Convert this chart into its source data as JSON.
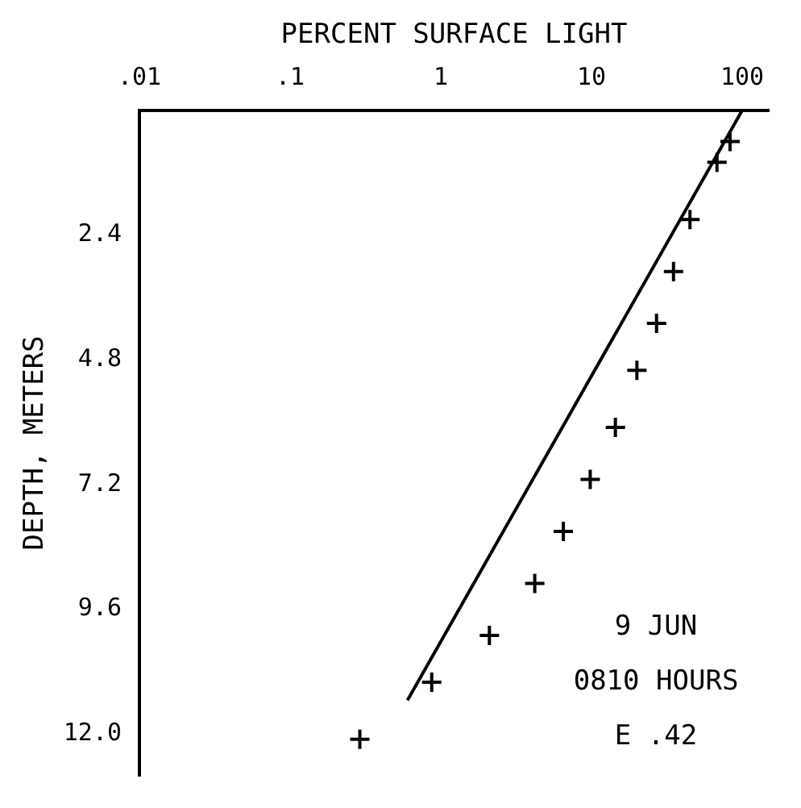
{
  "chart_data": {
    "type": "scatter",
    "xlabel": "PERCENT SURFACE LIGHT",
    "ylabel": "DEPTH, METERS",
    "log": "x",
    "xlim": [
      0.01,
      150
    ],
    "xticks": [
      {
        "value": 0.01,
        "label": ".01"
      },
      {
        "value": 0.1,
        "label": ".1"
      },
      1,
      10,
      100
    ],
    "ylim": [
      12.8,
      0
    ],
    "yticks": [
      2.4,
      4.8,
      7.2,
      9.6,
      {
        "value": 12,
        "label": "12.0"
      }
    ],
    "grid": false,
    "legend": false,
    "marker": "cross",
    "series": [
      {
        "type": "scatter",
        "color": "#000000",
        "x": [
          83,
          68,
          45,
          35,
          27,
          20,
          14.4,
          9.8,
          6.5,
          4.2,
          2.1,
          0.87,
          0.29
        ],
        "values": [
          0.6,
          1.0,
          2.1,
          3.1,
          4.1,
          5.0,
          6.1,
          7.1,
          8.1,
          9.1,
          10.1,
          11.0,
          12.1
        ]
      },
      {
        "type": "line",
        "color": "#000000",
        "marker": "none",
        "x": [
          100,
          0.6
        ],
        "values": [
          0,
          11.35
        ]
      }
    ],
    "annotations": [
      "9 JUN",
      "0810 HOURS",
      "E .42"
    ]
  }
}
